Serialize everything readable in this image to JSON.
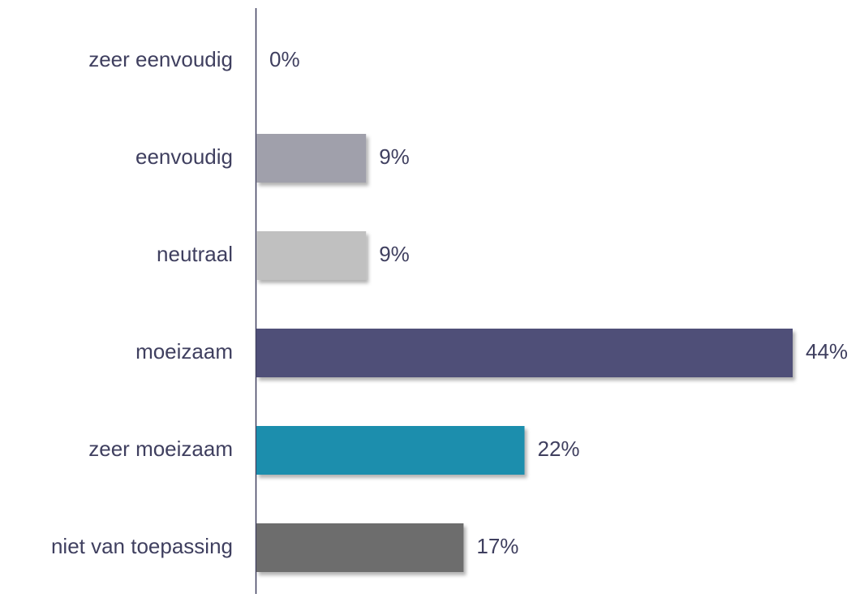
{
  "chart_data": {
    "type": "barh",
    "categories": [
      "zeer eenvoudig",
      "eenvoudig",
      "neutraal",
      "moeizaam",
      "zeer moeizaam",
      "niet van toepassing"
    ],
    "values": [
      0,
      9,
      9,
      44,
      22,
      17
    ],
    "value_labels": [
      "0%",
      "9%",
      "9%",
      "44%",
      "22%",
      "17%"
    ],
    "colors": [
      null,
      "#a0a0ab",
      "#c0c0c0",
      "#4f4f78",
      "#1f8ead",
      "#6d6d6d"
    ]
  }
}
